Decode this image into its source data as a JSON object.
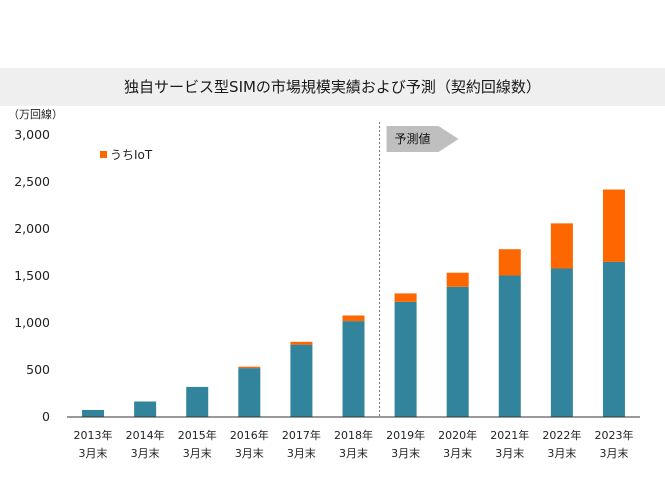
{
  "title": "独自サービス型SIMの市場規模実績および予測（契約回線数）",
  "chart_data": {
    "type": "bar",
    "stacked": true,
    "unit_label": "（万回線）",
    "ylim": [
      0,
      3000
    ],
    "yticks": [
      "0",
      "500",
      "1,000",
      "1,500",
      "2,000",
      "2,500",
      "3,000"
    ],
    "ytick_values": [
      0,
      500,
      1000,
      1500,
      2000,
      2500,
      3000
    ],
    "categories": [
      [
        "2013年",
        "3月末"
      ],
      [
        "2014年",
        "3月末"
      ],
      [
        "2015年",
        "3月末"
      ],
      [
        "2016年",
        "3月末"
      ],
      [
        "2017年",
        "3月末"
      ],
      [
        "2018年",
        "3月末"
      ],
      [
        "2019年",
        "3月末"
      ],
      [
        "2020年",
        "3月末"
      ],
      [
        "2021年",
        "3月末"
      ],
      [
        "2022年",
        "3月末"
      ],
      [
        "2023年",
        "3月末"
      ]
    ],
    "series": [
      {
        "values": [
          75,
          165,
          320,
          520,
          770,
          1020,
          1225,
          1385,
          1505,
          1580,
          1650
        ],
        "color": "#31849b"
      },
      {
        "name": "うちIoT",
        "values": [
          0,
          0,
          0,
          15,
          30,
          60,
          90,
          150,
          280,
          480,
          770
        ],
        "color": "#fe6600"
      }
    ],
    "forecast_label": "予測値",
    "forecast_start_index": 6,
    "grid": false
  }
}
